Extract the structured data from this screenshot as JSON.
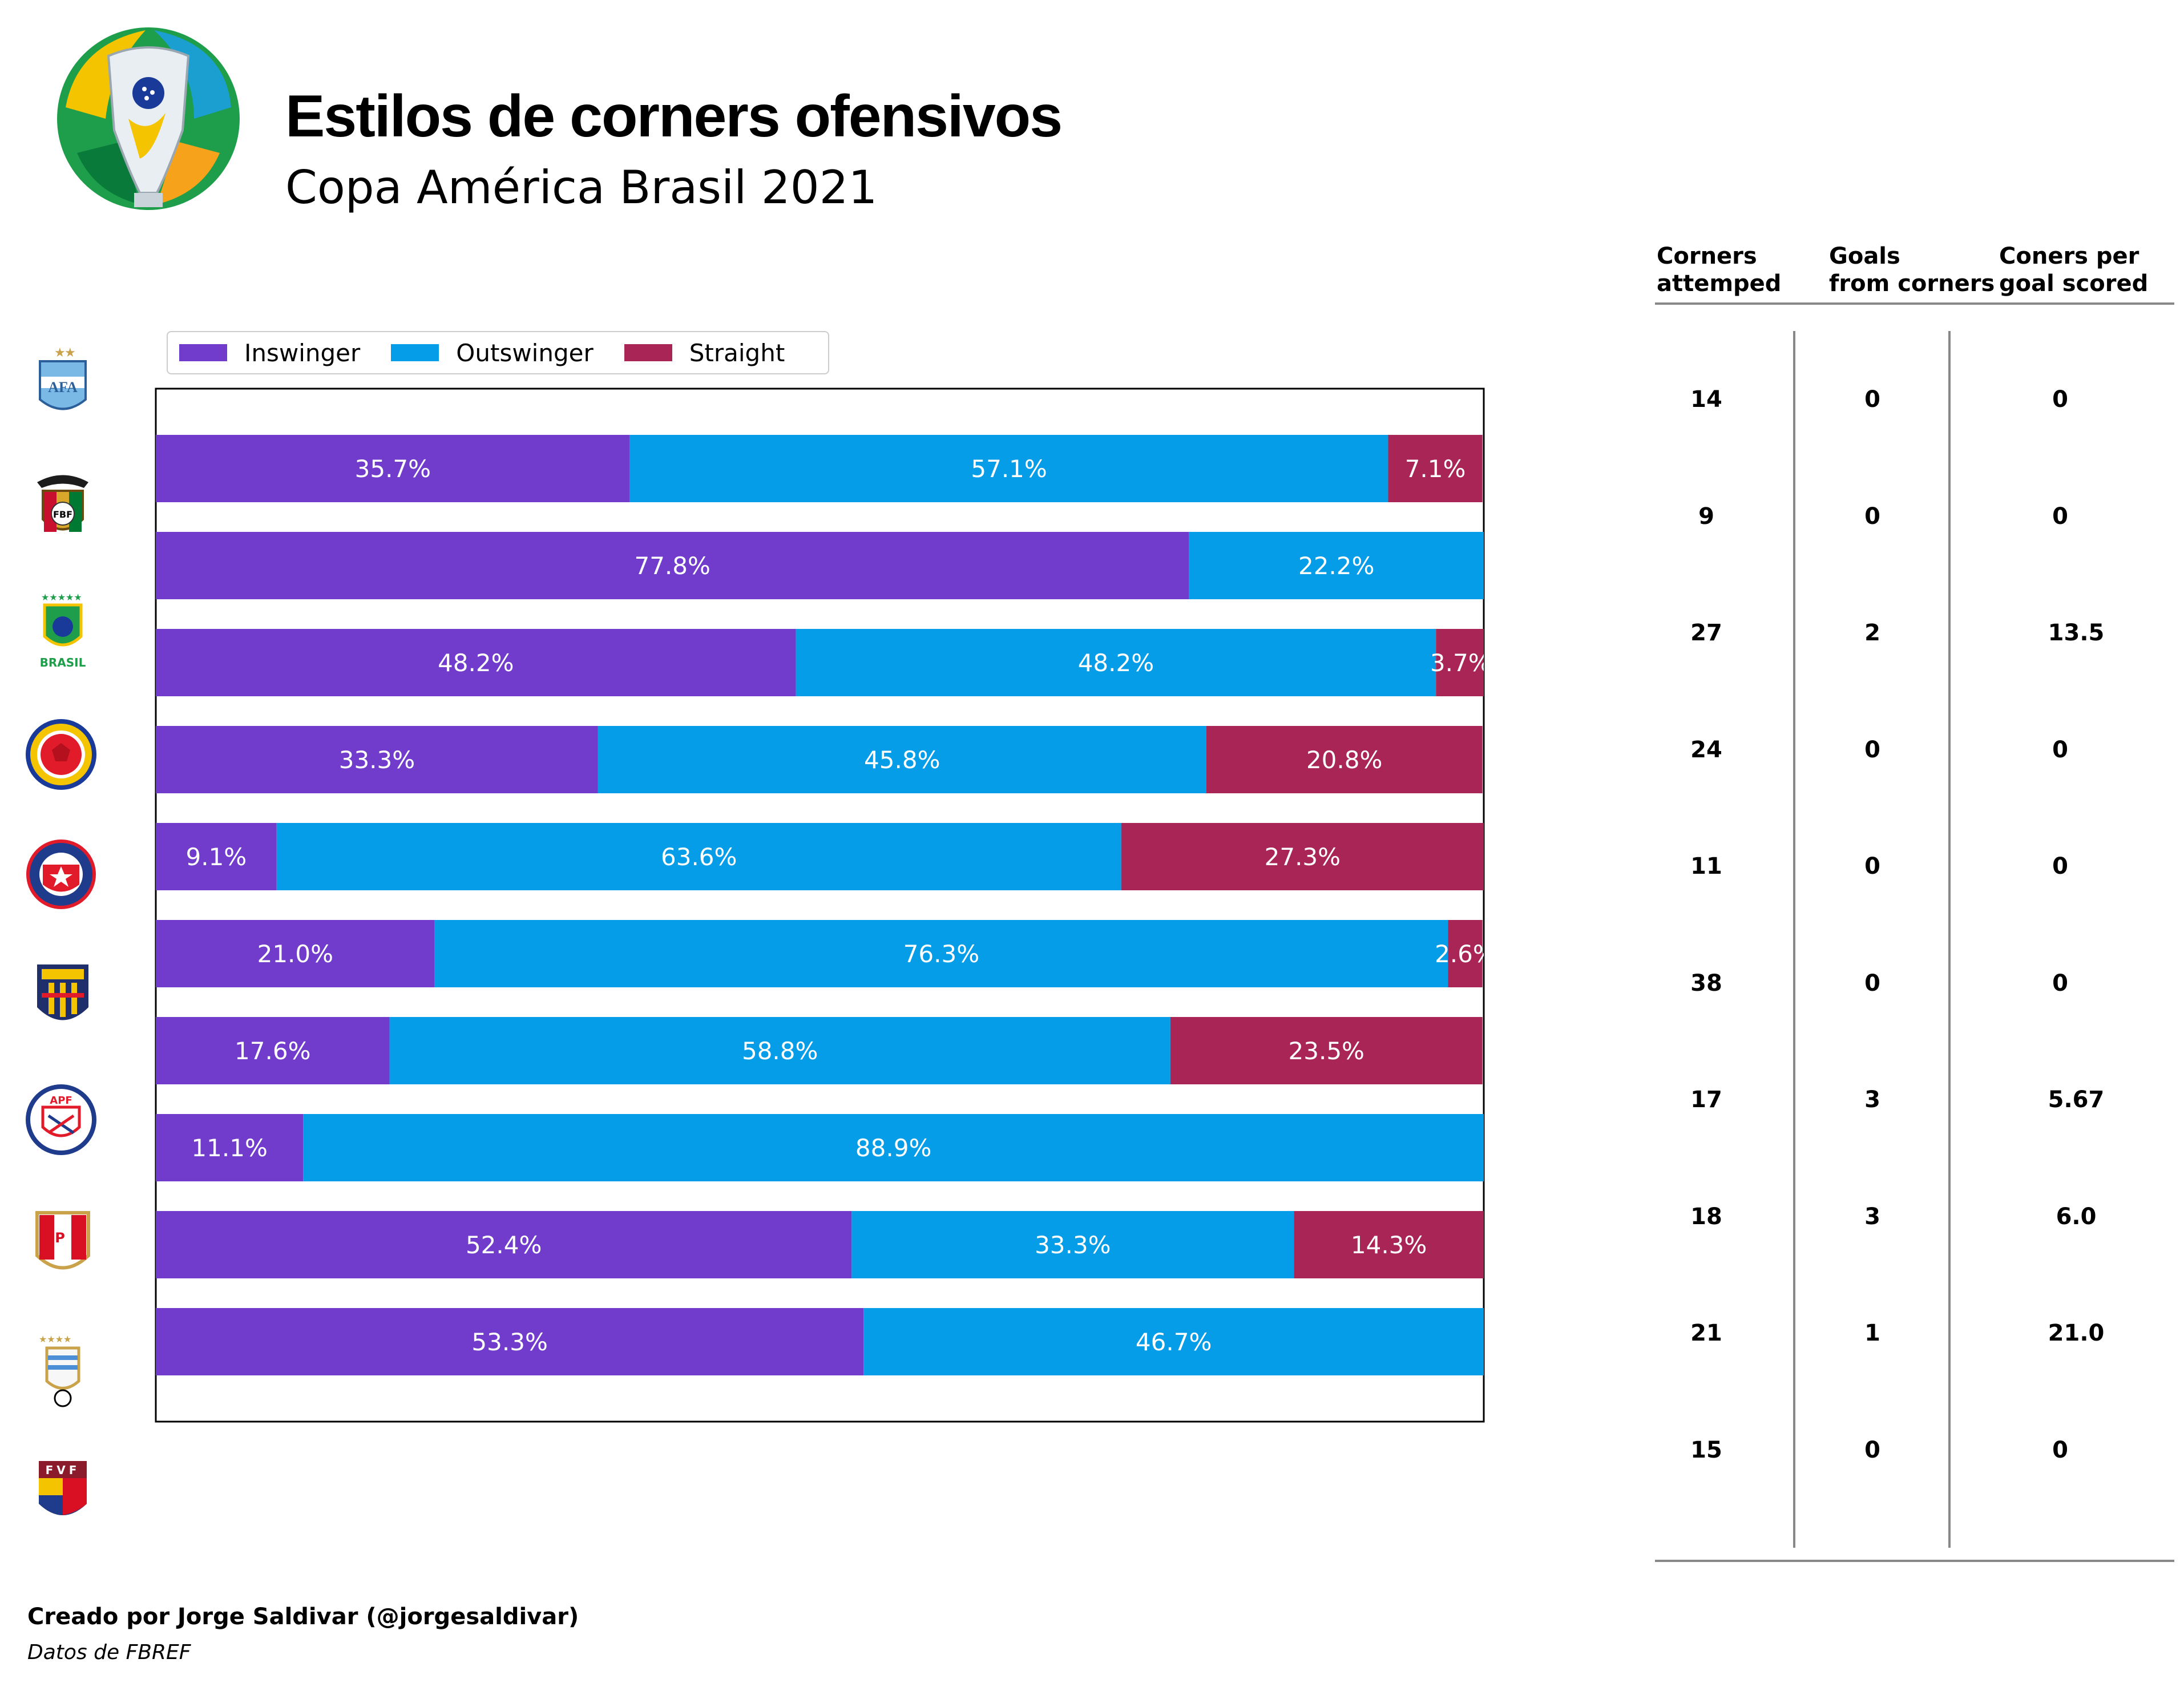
{
  "header": {
    "title": "Estilos de corners ofensivos",
    "subtitle": "Copa América Brasil 2021"
  },
  "footer": {
    "credit": "Creado por Jorge Saldivar (@jorgesaldivar)",
    "source": "Datos de FBREF"
  },
  "colors": {
    "inswinger": "#713ccb",
    "outswinger": "#069de8",
    "straight": "#a82556"
  },
  "chart_data": {
    "type": "bar",
    "orientation": "horizontal",
    "stacked": true,
    "xlim": [
      0,
      100
    ],
    "legend_position": "top-left (above plot)",
    "grid": false,
    "categories": [
      "Argentina",
      "Bolivia",
      "Brasil",
      "Colombia",
      "Chile",
      "Ecuador",
      "Paraguay",
      "Perú",
      "Uruguay",
      "Venezuela"
    ],
    "series": [
      {
        "name": "Inswinger",
        "values": [
          35.7,
          77.8,
          48.2,
          33.3,
          9.1,
          21.0,
          17.6,
          11.1,
          52.4,
          53.3
        ]
      },
      {
        "name": "Outswinger",
        "values": [
          57.1,
          22.2,
          48.2,
          45.8,
          63.6,
          76.3,
          58.8,
          88.9,
          33.3,
          46.7
        ]
      },
      {
        "name": "Straight",
        "values": [
          7.1,
          0,
          3.7,
          20.8,
          27.3,
          2.6,
          23.5,
          0,
          14.3,
          0
        ]
      }
    ],
    "labels": [
      [
        "35.7%",
        "57.1%",
        "7.1%"
      ],
      [
        "77.8%",
        "22.2%",
        ""
      ],
      [
        "48.2%",
        "48.2%",
        "3.7%"
      ],
      [
        "33.3%",
        "45.8%",
        "20.8%"
      ],
      [
        "9.1%",
        "63.6%",
        "27.3%"
      ],
      [
        "21.0%",
        "76.3%",
        "2.6%"
      ],
      [
        "17.6%",
        "58.8%",
        "23.5%"
      ],
      [
        "11.1%",
        "88.9%",
        ""
      ],
      [
        "52.4%",
        "33.3%",
        "14.3%"
      ],
      [
        "53.3%",
        "46.7%",
        ""
      ]
    ]
  },
  "table": {
    "headers": [
      "Corners\nattemped",
      "Goals\nfrom corners",
      "Coners per\ngoal scored"
    ],
    "rows": [
      [
        "14",
        "0",
        "0"
      ],
      [
        "9",
        "0",
        "0"
      ],
      [
        "27",
        "2",
        "13.5"
      ],
      [
        "24",
        "0",
        "0"
      ],
      [
        "11",
        "0",
        "0"
      ],
      [
        "38",
        "0",
        "0"
      ],
      [
        "17",
        "3",
        "5.67"
      ],
      [
        "18",
        "3",
        "6.0"
      ],
      [
        "21",
        "1",
        "21.0"
      ],
      [
        "15",
        "0",
        "0"
      ]
    ]
  },
  "crests": {
    "copa_logo": "copa-america-2021-logo",
    "argentina_letters": "AFA",
    "bolivia_letters": "FBF",
    "brasil_word": "BRASIL",
    "paraguay_letters": "APF",
    "peru_letters": "FPF",
    "venezuela_letters": "FVF"
  }
}
